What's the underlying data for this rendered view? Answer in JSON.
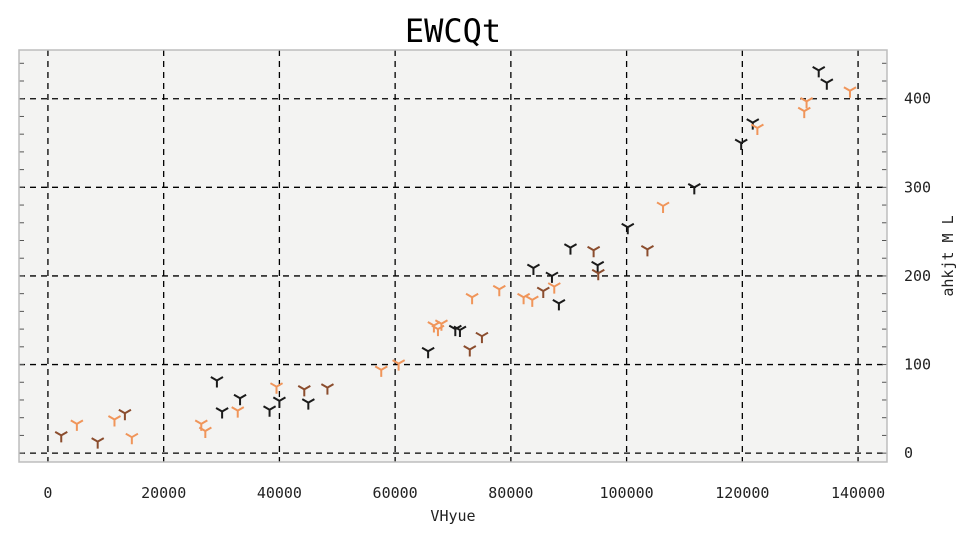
{
  "chart_data": {
    "type": "scatter",
    "title": "EWCQt",
    "xlabel": "VHyue",
    "ylabel": "ahkjt M L",
    "xlim": [
      -5000,
      145000
    ],
    "ylim": [
      -10,
      455
    ],
    "x_ticks": [
      0,
      20000,
      40000,
      60000,
      80000,
      100000,
      120000,
      140000
    ],
    "y_ticks": [
      0,
      100,
      200,
      300,
      400
    ],
    "y_axis_side": "right",
    "grid": true,
    "legend": "none",
    "marker": "tri-down",
    "series": [
      {
        "color": "#1a1a1a",
        "points": [
          [
            29200,
            82
          ],
          [
            30100,
            47
          ],
          [
            33200,
            62
          ],
          [
            38300,
            49
          ],
          [
            40000,
            59
          ],
          [
            45000,
            57
          ],
          [
            65700,
            115
          ],
          [
            70400,
            140
          ],
          [
            71200,
            139
          ],
          [
            83900,
            209
          ],
          [
            87100,
            200
          ],
          [
            88300,
            169
          ],
          [
            90300,
            232
          ],
          [
            95000,
            212
          ],
          [
            100200,
            255
          ],
          [
            111700,
            300
          ],
          [
            119800,
            350
          ],
          [
            121800,
            373
          ],
          [
            133200,
            432
          ],
          [
            134600,
            418
          ]
        ]
      },
      {
        "color": "#8b4d2e",
        "points": [
          [
            2300,
            20
          ],
          [
            8600,
            13
          ],
          [
            13300,
            45
          ],
          [
            44300,
            72
          ],
          [
            48300,
            74
          ],
          [
            72900,
            117
          ],
          [
            75000,
            132
          ],
          [
            85600,
            183
          ],
          [
            94300,
            229
          ],
          [
            95100,
            203
          ],
          [
            103600,
            230
          ]
        ]
      },
      {
        "color": "#f0955a",
        "points": [
          [
            5000,
            33
          ],
          [
            11500,
            38
          ],
          [
            14500,
            18
          ],
          [
            26500,
            33
          ],
          [
            27200,
            25
          ],
          [
            32800,
            48
          ],
          [
            39500,
            75
          ],
          [
            57600,
            94
          ],
          [
            60600,
            101
          ],
          [
            66700,
            144
          ],
          [
            67400,
            140
          ],
          [
            68000,
            146
          ],
          [
            73300,
            176
          ],
          [
            78000,
            185
          ],
          [
            82200,
            176
          ],
          [
            83700,
            173
          ],
          [
            87500,
            188
          ],
          [
            106300,
            279
          ],
          [
            122600,
            367
          ],
          [
            130700,
            386
          ],
          [
            131100,
            397
          ],
          [
            138600,
            409
          ]
        ]
      }
    ]
  }
}
